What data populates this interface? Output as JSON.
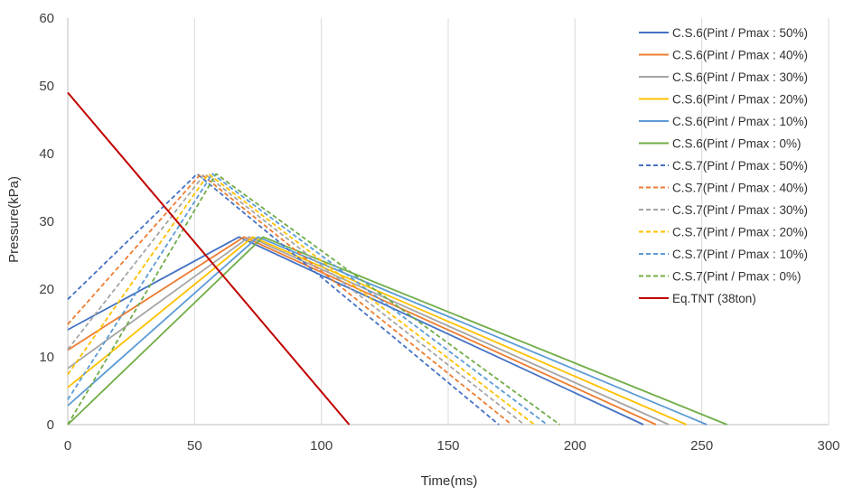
{
  "chart_data": {
    "type": "line",
    "title": "",
    "xlabel": "Time(ms)",
    "ylabel": "Pressure(kPa)",
    "xlim": [
      0,
      300
    ],
    "ylim": [
      0,
      60
    ],
    "x_ticks": [
      0,
      50,
      100,
      150,
      200,
      250,
      300
    ],
    "y_ticks": [
      0,
      10,
      20,
      30,
      40,
      50,
      60
    ],
    "grid": "vertical",
    "legend_position": "right",
    "series": [
      {
        "name": "C.S.6(Pint / Pmax : 50%)",
        "color": "#4472C4",
        "dash": "solid",
        "x": [
          0,
          67.5,
          227
        ],
        "y": [
          14,
          27.7,
          0
        ]
      },
      {
        "name": "C.S.6(Pint / Pmax : 40%)",
        "color": "#ED7D31",
        "dash": "solid",
        "x": [
          0,
          69.5,
          232
        ],
        "y": [
          11,
          27.7,
          0
        ]
      },
      {
        "name": "C.S.6(Pint / Pmax : 30%)",
        "color": "#A5A5A5",
        "dash": "solid",
        "x": [
          0,
          71.5,
          237
        ],
        "y": [
          8.3,
          27.7,
          0
        ]
      },
      {
        "name": "C.S.6(Pint / Pmax : 20%)",
        "color": "#FFC000",
        "dash": "solid",
        "x": [
          0,
          73,
          244
        ],
        "y": [
          5.5,
          27.7,
          0
        ]
      },
      {
        "name": "C.S.6(Pint / Pmax : 10%)",
        "color": "#5B9BD5",
        "dash": "solid",
        "x": [
          0,
          75,
          252
        ],
        "y": [
          2.8,
          27.7,
          0
        ]
      },
      {
        "name": "C.S.6(Pint / Pmax : 0%)",
        "color": "#70AD47",
        "dash": "solid",
        "x": [
          0,
          77,
          260
        ],
        "y": [
          0,
          27.7,
          0
        ]
      },
      {
        "name": "C.S.7(Pint / Pmax : 50%)",
        "color": "#4472C4",
        "dash": "dashed",
        "x": [
          0,
          51,
          170
        ],
        "y": [
          18.5,
          37,
          0
        ]
      },
      {
        "name": "C.S.7(Pint / Pmax : 40%)",
        "color": "#ED7D31",
        "dash": "dashed",
        "x": [
          0,
          52.5,
          175
        ],
        "y": [
          14.8,
          37,
          0
        ]
      },
      {
        "name": "C.S.7(Pint / Pmax : 30%)",
        "color": "#A5A5A5",
        "dash": "dashed",
        "x": [
          0,
          54,
          180
        ],
        "y": [
          11.1,
          37,
          0
        ]
      },
      {
        "name": "C.S.7(Pint / Pmax : 20%)",
        "color": "#FFC000",
        "dash": "dashed",
        "x": [
          0,
          55.5,
          184
        ],
        "y": [
          7.4,
          37,
          0
        ]
      },
      {
        "name": "C.S.7(Pint / Pmax : 10%)",
        "color": "#5B9BD5",
        "dash": "dashed",
        "x": [
          0,
          57,
          189
        ],
        "y": [
          3.7,
          37,
          0
        ]
      },
      {
        "name": "C.S.7(Pint / Pmax : 0%)",
        "color": "#70AD47",
        "dash": "dashed",
        "x": [
          0,
          58.5,
          194
        ],
        "y": [
          0,
          37,
          0
        ]
      },
      {
        "name": "Eq.TNT (38ton)",
        "color": "#C00000",
        "dash": "solid",
        "x": [
          0,
          111
        ],
        "y": [
          49,
          0
        ]
      }
    ]
  }
}
